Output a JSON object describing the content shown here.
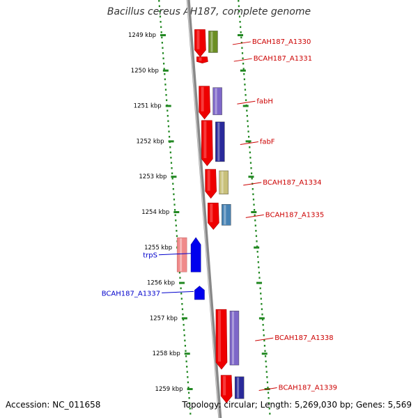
{
  "title": "Bacillus cereus AH187, complete genome",
  "footer": {
    "accession": "Accession: NC_011658",
    "stats": "Topology: circular; Length: 5,269,030 bp; Genes: 5,569"
  },
  "ruler": [
    {
      "kbp": 1249,
      "label": "1249 kbp"
    },
    {
      "kbp": 1250,
      "label": "1250 kbp"
    },
    {
      "kbp": 1251,
      "label": "1251 kbp"
    },
    {
      "kbp": 1252,
      "label": "1252 kbp"
    },
    {
      "kbp": 1253,
      "label": "1253 kbp"
    },
    {
      "kbp": 1254,
      "label": "1254 kbp"
    },
    {
      "kbp": 1255,
      "label": "1255 kbp"
    },
    {
      "kbp": 1256,
      "label": "1256 kbp"
    },
    {
      "kbp": 1257,
      "label": "1257 kbp"
    },
    {
      "kbp": 1258,
      "label": "1258 kbp"
    },
    {
      "kbp": 1259,
      "label": "1259 kbp"
    }
  ],
  "genes": [
    {
      "name": "BCAH187_A1330",
      "strand": "+",
      "start": 1248.85,
      "end": 1249.62,
      "label_color": "#cc0000"
    },
    {
      "name": "BCAH187_A1331",
      "strand": "+",
      "start": 1249.62,
      "end": 1249.8,
      "label_color": "#cc0000"
    },
    {
      "name": "fabH",
      "strand": "+",
      "start": 1250.45,
      "end": 1251.38,
      "label_color": "#cc0000"
    },
    {
      "name": "fabF",
      "strand": "+",
      "start": 1251.42,
      "end": 1252.7,
      "label_color": "#cc0000"
    },
    {
      "name": "BCAH187_A1334",
      "strand": "+",
      "start": 1252.8,
      "end": 1253.62,
      "label_color": "#cc0000"
    },
    {
      "name": "BCAH187_A1335",
      "strand": "+",
      "start": 1253.75,
      "end": 1254.5,
      "label_color": "#cc0000"
    },
    {
      "name": "trpS",
      "strand": "-",
      "start": 1254.73,
      "end": 1255.7,
      "label_color": "#0000cc"
    },
    {
      "name": "BCAH187_A1337",
      "strand": "-",
      "start": 1256.1,
      "end": 1256.48,
      "label_color": "#0000cc"
    },
    {
      "name": "BCAH187_A1338",
      "strand": "+",
      "start": 1256.76,
      "end": 1258.45,
      "label_color": "#cc0000"
    },
    {
      "name": "BCAH187_A1339",
      "strand": "+",
      "start": 1258.62,
      "end": 1259.4,
      "label_color": "#cc0000"
    }
  ],
  "colors": {
    "forward_gene": "#ee0000",
    "reverse_gene": "#0000ee",
    "backbone": "#888888",
    "tick_dot": "#228822",
    "feature_forward": [
      "#6b8e23",
      "#00bcd4",
      "#7e67c8",
      "#2a2a9a",
      "#c8c07a",
      "#4682b4"
    ],
    "feature_reverse": "#f08a8a"
  }
}
